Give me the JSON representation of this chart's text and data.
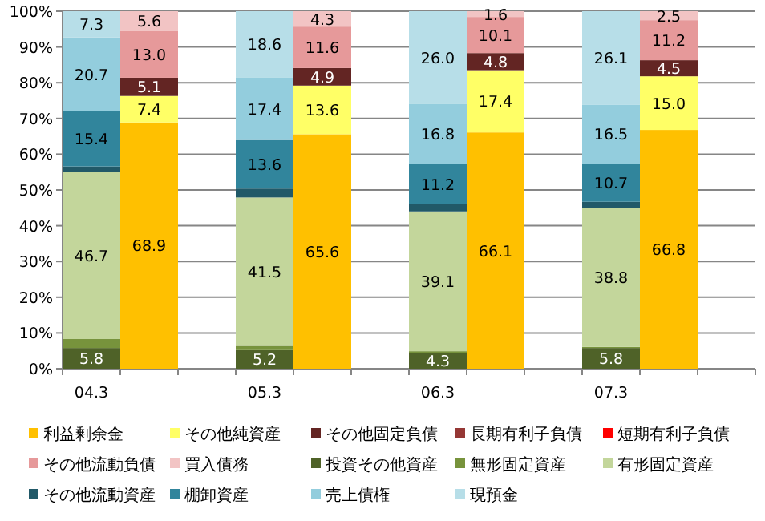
{
  "chart_data": {
    "type": "bar",
    "stacked": true,
    "categories": [
      "04.3",
      null,
      null,
      "05.3",
      null,
      null,
      "06.3",
      null,
      null,
      "07.3",
      null,
      null
    ],
    "ylim": [
      0,
      100
    ],
    "yticks": [
      {
        "value": 0,
        "label": "0%"
      },
      {
        "value": 10,
        "label": "10%"
      },
      {
        "value": 20,
        "label": "20%"
      },
      {
        "value": 30,
        "label": "30%"
      },
      {
        "value": 40,
        "label": "40%"
      },
      {
        "value": 50,
        "label": "50%"
      },
      {
        "value": 60,
        "label": "60%"
      },
      {
        "value": 70,
        "label": "70%"
      },
      {
        "value": 80,
        "label": "80%"
      },
      {
        "value": 90,
        "label": "90%"
      },
      {
        "value": 100,
        "label": "100%"
      }
    ],
    "grid": "y",
    "legend": "bottom",
    "series": [
      {
        "name": "利益剰余金",
        "color": "#ffc000",
        "values": [
          null,
          68.9,
          null,
          null,
          65.6,
          null,
          null,
          66.1,
          null,
          null,
          66.8,
          null
        ],
        "value_labels": [
          null,
          "68.9",
          null,
          null,
          "65.6",
          null,
          null,
          "66.1",
          null,
          null,
          "66.8",
          null
        ]
      },
      {
        "name": "その他純資産",
        "color": "#ffff66",
        "values": [
          null,
          7.4,
          null,
          null,
          13.6,
          null,
          null,
          17.4,
          null,
          null,
          15.0,
          null
        ],
        "value_labels": [
          null,
          "7.4",
          null,
          null,
          "13.6",
          null,
          null,
          "17.4",
          null,
          null,
          "15.0",
          null
        ]
      },
      {
        "name": "その他固定負債",
        "color": "#632523",
        "values": [
          null,
          5.1,
          null,
          null,
          4.9,
          null,
          null,
          4.8,
          null,
          null,
          4.5,
          null
        ],
        "value_labels": [
          null,
          "5.1",
          null,
          null,
          "4.9",
          null,
          null,
          "4.8",
          null,
          null,
          "4.5",
          null
        ]
      },
      {
        "name": "長期有利子負債",
        "color": "#953735",
        "values": [
          null,
          0,
          null,
          null,
          0,
          null,
          null,
          0,
          null,
          null,
          0,
          null
        ]
      },
      {
        "name": "短期有利子負債",
        "color": "#ff0000",
        "values": [
          null,
          0,
          null,
          null,
          0,
          null,
          null,
          0,
          null,
          null,
          0,
          null
        ]
      },
      {
        "name": "その他流動負債",
        "color": "#e6999a",
        "values": [
          null,
          13.0,
          null,
          null,
          11.6,
          null,
          null,
          10.1,
          null,
          null,
          11.2,
          null
        ],
        "value_labels": [
          null,
          "13.0",
          null,
          null,
          "11.6",
          null,
          null,
          "10.1",
          null,
          null,
          "11.2",
          null
        ]
      },
      {
        "name": "買入債務",
        "color": "#f2c4c4",
        "values": [
          null,
          5.6,
          null,
          null,
          4.3,
          null,
          null,
          1.6,
          null,
          null,
          2.5,
          null
        ],
        "value_labels": [
          null,
          "5.6",
          null,
          null,
          "4.3",
          null,
          null,
          "1.6",
          null,
          null,
          "2.5",
          null
        ]
      },
      {
        "name": "投資その他資産",
        "color": "#4f6228",
        "values": [
          5.8,
          null,
          null,
          5.2,
          null,
          null,
          4.3,
          null,
          null,
          5.8,
          null,
          null
        ],
        "value_labels": [
          "5.8",
          null,
          null,
          "5.2",
          null,
          null,
          "4.3",
          null,
          null,
          "5.8",
          null,
          null
        ]
      },
      {
        "name": "無形固定資産",
        "color": "#77933c",
        "values": [
          2.5,
          null,
          null,
          1.2,
          null,
          null,
          0.6,
          null,
          null,
          0.3,
          null,
          null
        ]
      },
      {
        "name": "有形固定資産",
        "color": "#c3d69b",
        "values": [
          46.7,
          null,
          null,
          41.5,
          null,
          null,
          39.1,
          null,
          null,
          38.8,
          null,
          null
        ],
        "value_labels": [
          "46.7",
          null,
          null,
          "41.5",
          null,
          null,
          "39.1",
          null,
          null,
          "38.8",
          null,
          null
        ]
      },
      {
        "name": "その他流動資産",
        "color": "#215968",
        "values": [
          1.6,
          null,
          null,
          2.5,
          null,
          null,
          2.0,
          null,
          null,
          1.8,
          null,
          null
        ]
      },
      {
        "name": "棚卸資産",
        "color": "#31859c",
        "values": [
          15.4,
          null,
          null,
          13.6,
          null,
          null,
          11.2,
          null,
          null,
          10.7,
          null,
          null
        ],
        "value_labels": [
          "15.4",
          null,
          null,
          "13.6",
          null,
          null,
          "11.2",
          null,
          null,
          "10.7",
          null,
          null
        ]
      },
      {
        "name": "売上債権",
        "color": "#93cddd",
        "values": [
          20.7,
          null,
          null,
          17.4,
          null,
          null,
          16.8,
          null,
          null,
          16.5,
          null,
          null
        ],
        "value_labels": [
          "20.7",
          null,
          null,
          "17.4",
          null,
          null,
          "16.8",
          null,
          null,
          "16.5",
          null,
          null
        ]
      },
      {
        "name": "現預金",
        "color": "#b7dee8",
        "values": [
          7.3,
          null,
          null,
          18.6,
          null,
          null,
          26.0,
          null,
          null,
          26.1,
          null,
          null
        ],
        "value_labels": [
          "7.3",
          null,
          null,
          "18.6",
          null,
          null,
          "26.0",
          null,
          null,
          "26.1",
          null,
          null
        ]
      }
    ]
  }
}
